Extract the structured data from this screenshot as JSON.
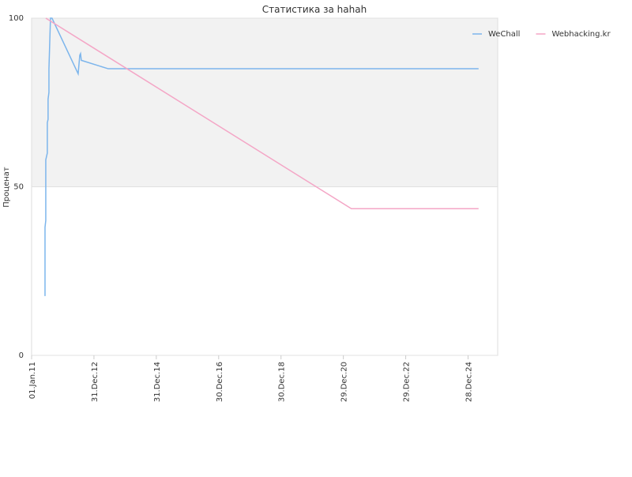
{
  "chart_data": {
    "type": "line",
    "title": "Статистика за hahah",
    "y_label": "Проценат",
    "xlim": [
      "2011-01-01",
      "2025-12-10"
    ],
    "xticks": [
      {
        "value": "2011-01-01",
        "label": "01.Jan.11"
      },
      {
        "value": "2012-12-31",
        "label": "31.Dec.12"
      },
      {
        "value": "2014-12-31",
        "label": "31.Dec.14"
      },
      {
        "value": "2016-12-30",
        "label": "30.Dec.16"
      },
      {
        "value": "2018-12-30",
        "label": "30.Dec.18"
      },
      {
        "value": "2020-12-29",
        "label": "29.Dec.20"
      },
      {
        "value": "2022-12-29",
        "label": "29.Dec.22"
      },
      {
        "value": "2024-12-28",
        "label": "28.Dec.24"
      }
    ],
    "ylim": [
      0,
      100
    ],
    "yticks": [
      0,
      50,
      100
    ],
    "grid": true,
    "band": {
      "from": 50,
      "to": 100,
      "color": "#f2f2f2"
    },
    "legend": "top-right",
    "series": [
      {
        "name": "WeChall",
        "color": "#7cb5ec",
        "x": [
          "2011-06-07",
          "2011-06-07",
          "2011-06-16",
          "2011-06-16",
          "2011-07-04",
          "2011-07-04",
          "2011-07-13",
          "2011-07-13",
          "2011-07-23",
          "2011-07-23",
          "2011-08-10",
          "2011-08-28",
          "2012-06-29",
          "2012-07-18",
          "2012-07-27",
          "2012-08-05",
          "2013-06-16",
          "2025-04-30"
        ],
        "values": [
          17.6,
          38,
          40,
          58,
          60,
          69,
          70,
          76,
          78,
          85,
          100,
          100,
          83.5,
          89,
          89.5,
          87.5,
          85,
          85
        ]
      },
      {
        "name": "Webhacking.kr",
        "color": "#f4a6c6",
        "x": [
          "2011-06-16",
          "2021-04-02",
          "2025-04-30"
        ],
        "values": [
          100,
          43.5,
          43.5
        ]
      }
    ]
  }
}
